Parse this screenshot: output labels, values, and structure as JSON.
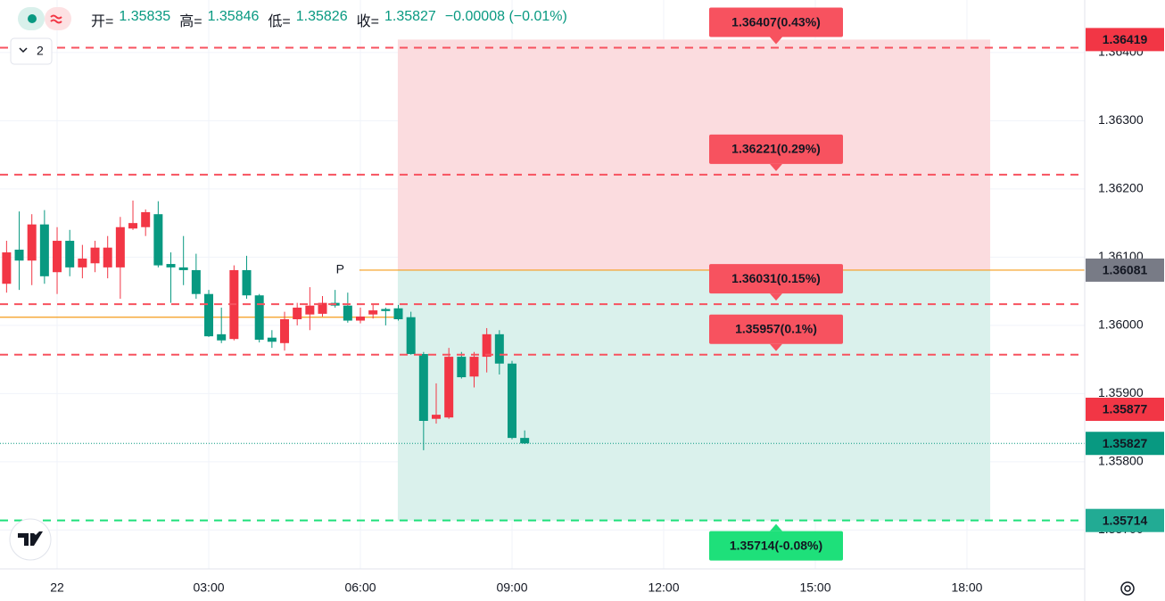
{
  "legend": {
    "items": [
      {
        "label": "开=",
        "value": "1.35835"
      },
      {
        "label": "高=",
        "value": "1.35846"
      },
      {
        "label": "低=",
        "value": "1.35826"
      },
      {
        "label": "收=",
        "value": "1.35827"
      }
    ],
    "change": "−0.00008 (−0.01%)"
  },
  "pane_count": "2",
  "chart_data": {
    "type": "candlestick",
    "x": [
      -1,
      -0.75,
      -0.5,
      -0.25,
      0,
      0.25,
      0.5,
      0.75,
      1,
      1.25,
      1.5,
      1.75,
      2,
      2.25,
      2.5,
      2.75,
      3,
      3.25,
      3.5,
      3.75,
      4,
      4.25,
      4.5,
      4.75,
      5,
      5.25,
      5.5,
      5.75,
      6,
      6.25,
      6.5,
      6.75,
      7,
      7.25,
      7.5,
      7.75,
      8,
      8.25,
      8.5,
      8.75,
      9,
      9.25
    ],
    "open": [
      1.36061,
      1.36111,
      1.36095,
      1.36148,
      1.36078,
      1.36124,
      1.36085,
      1.36091,
      1.36085,
      1.36085,
      1.36142,
      1.36144,
      1.36163,
      1.3609,
      1.36085,
      1.36081,
      1.36046,
      1.35987,
      1.3598,
      1.36081,
      1.36044,
      1.35982,
      1.35974,
      1.36009,
      1.36016,
      1.36017,
      1.36033,
      1.36029,
      1.36007,
      1.36016,
      1.36024,
      1.36025,
      1.36012,
      1.35958,
      1.35863,
      1.35865,
      1.35954,
      1.35925,
      1.35954,
      1.35987,
      1.35944,
      1.35835
    ],
    "high": [
      1.36124,
      1.36167,
      1.36163,
      1.36169,
      1.36144,
      1.3614,
      1.36118,
      1.36124,
      1.36131,
      1.36159,
      1.36183,
      1.3617,
      1.36182,
      1.36107,
      1.36131,
      1.36105,
      1.36052,
      1.36026,
      1.36088,
      1.36102,
      1.36046,
      1.35993,
      1.3602,
      1.36033,
      1.36056,
      1.36043,
      1.36052,
      1.36048,
      1.36026,
      1.3603,
      1.36026,
      1.3603,
      1.3602,
      1.35961,
      1.35915,
      1.35967,
      1.35961,
      1.35961,
      1.35996,
      1.35993,
      1.35948,
      1.35846
    ],
    "low": [
      1.36048,
      1.36052,
      1.36059,
      1.36061,
      1.36046,
      1.36072,
      1.36069,
      1.36078,
      1.36069,
      1.36039,
      1.3614,
      1.36131,
      1.36085,
      1.36033,
      1.36059,
      1.36039,
      1.35983,
      1.35974,
      1.35978,
      1.36039,
      1.35975,
      1.35967,
      1.35963,
      1.36,
      1.35993,
      1.36013,
      1.36026,
      1.36004,
      1.36003,
      1.3601,
      1.36,
      1.36007,
      1.35957,
      1.35817,
      1.35856,
      1.35863,
      1.35922,
      1.35909,
      1.35931,
      1.35928,
      1.35833,
      1.35826
    ],
    "close": [
      1.36107,
      1.36095,
      1.36148,
      1.36072,
      1.36124,
      1.36085,
      1.36098,
      1.36114,
      1.36114,
      1.36144,
      1.3615,
      1.36166,
      1.36088,
      1.36085,
      1.36081,
      1.36046,
      1.35984,
      1.35978,
      1.36081,
      1.36044,
      1.35979,
      1.35976,
      1.36009,
      1.36026,
      1.36029,
      1.36033,
      1.36029,
      1.36007,
      1.36013,
      1.36022,
      1.36021,
      1.36009,
      1.35958,
      1.3586,
      1.35869,
      1.35954,
      1.35924,
      1.35954,
      1.35987,
      1.35944,
      1.35835,
      1.35827
    ],
    "up_color": "#f23645",
    "down_color": "#089981",
    "xlim": [
      -1.13,
      20.33
    ],
    "xticks": [
      {
        "value": 0,
        "label": "22"
      },
      {
        "value": 3,
        "label": "03:00"
      },
      {
        "value": 6,
        "label": "06:00"
      },
      {
        "value": 9,
        "label": "09:00"
      },
      {
        "value": 12,
        "label": "12:00"
      },
      {
        "value": 15,
        "label": "15:00"
      },
      {
        "value": 18,
        "label": "18:00"
      }
    ],
    "ylim": [
      1.35643,
      1.36477
    ],
    "yticks": [
      {
        "value": 1.357,
        "label": "1.35700"
      },
      {
        "value": 1.358,
        "label": "1.35800"
      },
      {
        "value": 1.359,
        "label": "1.35900"
      },
      {
        "value": 1.36,
        "label": "1.36000"
      },
      {
        "value": 1.361,
        "label": "1.36100"
      },
      {
        "value": 1.362,
        "label": "1.36200"
      },
      {
        "value": 1.363,
        "label": "1.36300"
      },
      {
        "value": 1.364,
        "label": "1.36400"
      }
    ],
    "grid": true,
    "indicator_lines": [
      {
        "value": 1.36012,
        "from": -1.13,
        "to": 6.74,
        "color": "#f59c1a"
      },
      {
        "value": 1.36081,
        "from": 5.98,
        "to": 20.33,
        "color": "#f59c1a"
      }
    ],
    "marker": {
      "text": "P",
      "x": 5.6,
      "value": 1.36081,
      "color": "#f59c1a"
    },
    "position": {
      "entry": 1.36081,
      "stop": 1.36419,
      "target": 1.35714,
      "x_range": [
        6.74,
        18.46
      ],
      "stop_fill": "#fbdcdf",
      "target_fill": "#daf1ec"
    },
    "levels": [
      {
        "value": 1.36407,
        "label": "1.36407(0.43%)",
        "color": "#f7525f"
      },
      {
        "value": 1.36221,
        "label": "1.36221(0.29%)",
        "color": "#f7525f"
      },
      {
        "value": 1.36031,
        "label": "1.36031(0.15%)",
        "color": "#f7525f"
      },
      {
        "value": 1.35957,
        "label": "1.35957(0.1%)",
        "color": "#f7525f"
      },
      {
        "value": 1.35714,
        "label": "1.35714(-0.08%)",
        "color": "#1ee07a",
        "below": true
      }
    ],
    "axis_labels": [
      {
        "value": 1.36419,
        "color": "#f23645"
      },
      {
        "value": 1.36081,
        "color": "#787b86"
      },
      {
        "value": 1.35877,
        "color": "#f23645"
      },
      {
        "value": 1.35827,
        "color": "#089981",
        "dotted": true
      },
      {
        "value": 1.35714,
        "color": "#22ab94"
      }
    ]
  }
}
